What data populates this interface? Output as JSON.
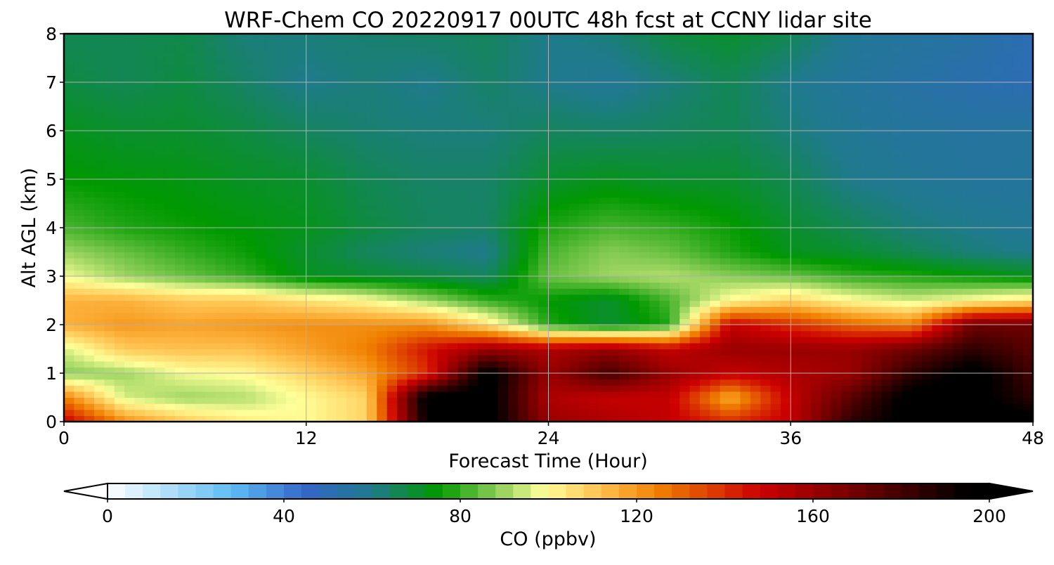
{
  "chart_data": {
    "type": "heatmap",
    "title": "WRF-Chem CO  20220917 00UTC 48h fcst at CCNY lidar site",
    "xlabel": "Forecast Time (Hour)",
    "ylabel": "Alt AGL (km)",
    "xlim": [
      0,
      48
    ],
    "ylim": [
      0,
      8
    ],
    "xticks": [
      0,
      12,
      24,
      36,
      48
    ],
    "yticks": [
      0,
      1,
      2,
      3,
      4,
      5,
      6,
      7,
      8
    ],
    "grid": true,
    "x": [
      0,
      3,
      6,
      9,
      12,
      15,
      18,
      21,
      24,
      27,
      30,
      33,
      36,
      39,
      42,
      45,
      48
    ],
    "y": [
      0,
      0.5,
      1,
      1.5,
      2,
      2.5,
      3,
      3.5,
      4,
      5,
      6,
      7,
      8
    ],
    "z": [
      [
        150,
        122,
        110,
        103,
        100,
        108,
        195,
        200,
        160,
        155,
        150,
        140,
        150,
        185,
        200,
        200,
        200
      ],
      [
        125,
        95,
        90,
        92,
        100,
        108,
        200,
        200,
        155,
        150,
        150,
        115,
        150,
        175,
        200,
        200,
        185
      ],
      [
        88,
        90,
        98,
        100,
        108,
        118,
        140,
        200,
        160,
        180,
        160,
        150,
        155,
        160,
        185,
        200,
        180
      ],
      [
        95,
        110,
        112,
        112,
        118,
        125,
        145,
        160,
        155,
        160,
        150,
        160,
        160,
        160,
        170,
        185,
        175
      ],
      [
        115,
        120,
        118,
        120,
        122,
        122,
        122,
        105,
        78,
        70,
        78,
        150,
        140,
        130,
        125,
        170,
        170
      ],
      [
        115,
        115,
        110,
        110,
        105,
        100,
        90,
        80,
        75,
        70,
        82,
        100,
        108,
        100,
        95,
        100,
        105
      ],
      [
        98,
        90,
        85,
        80,
        72,
        70,
        68,
        65,
        85,
        90,
        92,
        88,
        85,
        80,
        78,
        75,
        72
      ],
      [
        90,
        85,
        80,
        76,
        70,
        65,
        62,
        60,
        82,
        88,
        85,
        78,
        72,
        70,
        66,
        62,
        60
      ],
      [
        82,
        78,
        76,
        74,
        72,
        68,
        65,
        64,
        78,
        82,
        80,
        76,
        70,
        66,
        62,
        60,
        58
      ],
      [
        75,
        74,
        73,
        71,
        70,
        66,
        64,
        64,
        70,
        72,
        70,
        70,
        66,
        60,
        58,
        56,
        56
      ],
      [
        72,
        70,
        70,
        68,
        65,
        63,
        62,
        62,
        65,
        64,
        65,
        66,
        62,
        58,
        56,
        55,
        56
      ],
      [
        68,
        66,
        68,
        64,
        60,
        62,
        60,
        64,
        60,
        58,
        62,
        66,
        60,
        56,
        54,
        52,
        50
      ],
      [
        66,
        66,
        67,
        62,
        62,
        63,
        64,
        65,
        60,
        62,
        68,
        70,
        66,
        58,
        56,
        54,
        50
      ]
    ],
    "colorbar": {
      "label": "CO  (ppbv)",
      "min": 0,
      "max": 200,
      "ticks": [
        0,
        40,
        80,
        120,
        160,
        200
      ],
      "extend": "both",
      "orientation": "horizontal",
      "colors": [
        {
          "value": 0,
          "color": "#ffffff"
        },
        {
          "value": 15,
          "color": "#a8dcf8"
        },
        {
          "value": 28,
          "color": "#5fbdf3"
        },
        {
          "value": 45,
          "color": "#3366c8"
        },
        {
          "value": 60,
          "color": "#1f7a8c"
        },
        {
          "value": 75,
          "color": "#009900"
        },
        {
          "value": 88,
          "color": "#88cc55"
        },
        {
          "value": 99,
          "color": "#ffff99"
        },
        {
          "value": 112,
          "color": "#ffc04d"
        },
        {
          "value": 125,
          "color": "#f08000"
        },
        {
          "value": 148,
          "color": "#cc0000"
        },
        {
          "value": 172,
          "color": "#660000"
        },
        {
          "value": 195,
          "color": "#000000"
        },
        {
          "value": 200,
          "color": "#000000"
        }
      ]
    }
  }
}
